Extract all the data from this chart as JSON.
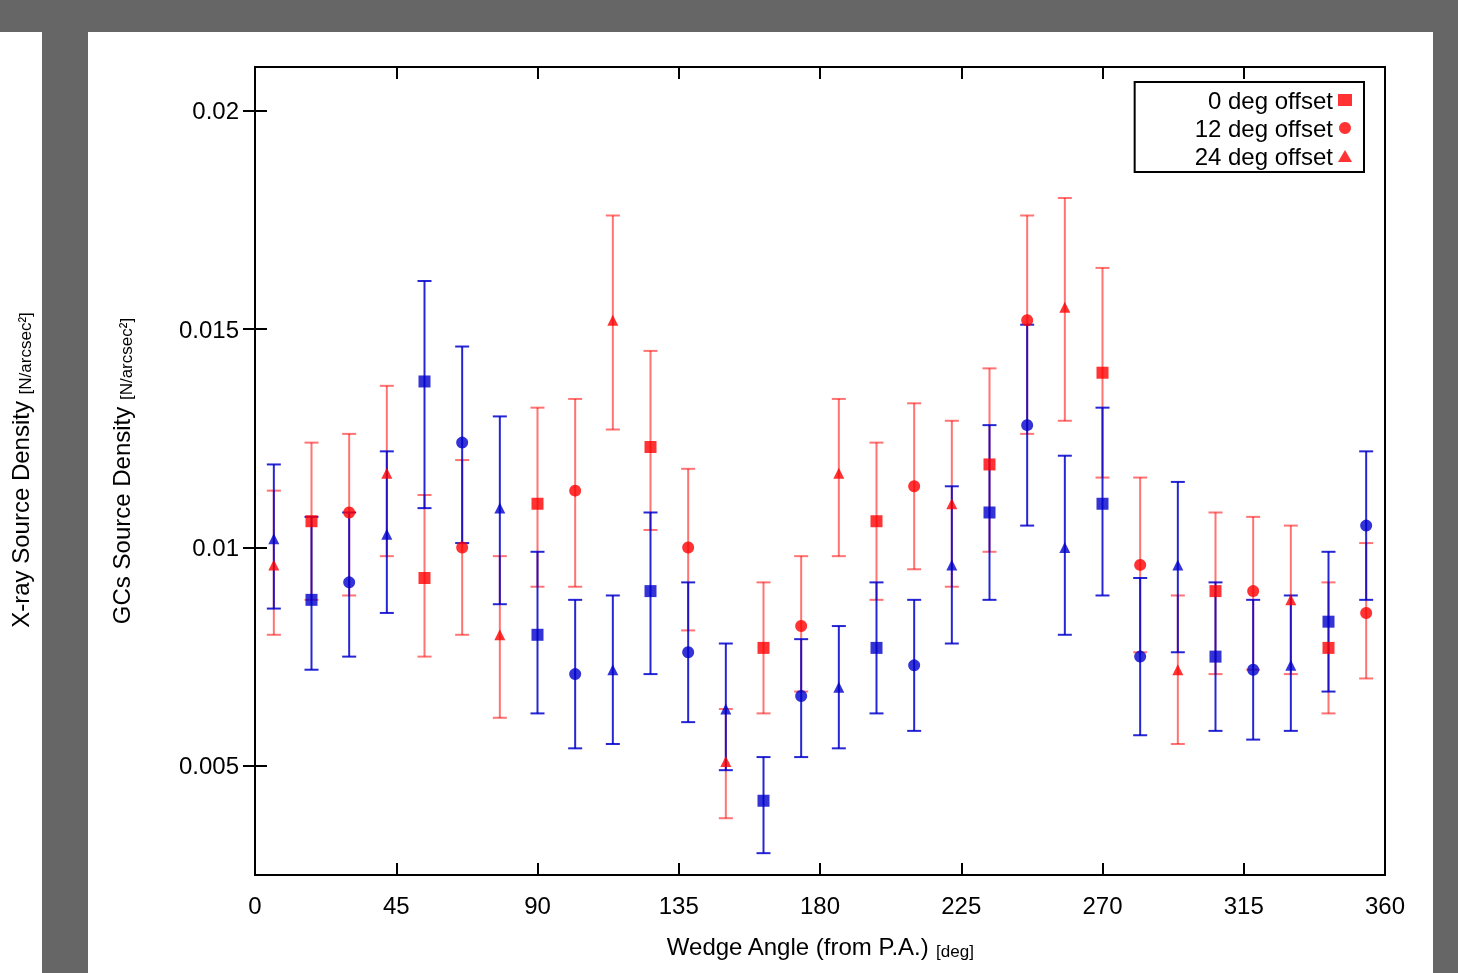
{
  "chart_data": {
    "type": "scatter",
    "ylabel": "GCs Source Density $_{[N/arcsec²]}$",
    "xlabel": "Wedge Angle (from P.A.) $_{[deg]}$",
    "annotations": [
      "X-ray Source Density $_{[N/arcsec²]}$"
    ],
    "xlim": [
      0,
      360
    ],
    "xticks": [
      0,
      45,
      90,
      135,
      180,
      225,
      270,
      315,
      360
    ],
    "ylim": [
      0.0025,
      0.021
    ],
    "yticks": [
      0.005,
      0.01,
      0.015,
      0.02
    ],
    "grid": false,
    "legend": "top right",
    "series": [
      {
        "name": "0 deg offset",
        "color": "#ff0000",
        "marker": "square",
        "x": [
          18,
          54,
          90,
          126,
          162,
          198,
          234,
          270,
          306,
          342
        ],
        "values": [
          0.0106,
          0.0093,
          0.011,
          0.0123,
          0.0077,
          0.0106,
          0.0119,
          0.014,
          0.009,
          0.0077
        ],
        "errors": [
          [
            0.0088,
            0.0124
          ],
          [
            0.0075,
            0.0112
          ],
          [
            0.0091,
            0.0132
          ],
          [
            0.0104,
            0.0145
          ],
          [
            0.0062,
            0.0092
          ],
          [
            0.0088,
            0.0124
          ],
          [
            0.0099,
            0.0141
          ],
          [
            0.0116,
            0.0164
          ],
          [
            0.0071,
            0.0108
          ],
          [
            0.0062,
            0.0092
          ]
        ]
      },
      {
        "name": "12 deg offset",
        "color": "#ff0000",
        "marker": "circle",
        "x": [
          30,
          66,
          102,
          138,
          174,
          210,
          246,
          282,
          318,
          354
        ],
        "values": [
          0.0108,
          0.01,
          0.0113,
          0.01,
          0.0082,
          0.0114,
          0.0152,
          0.0096,
          0.009,
          0.0085
        ],
        "errors": [
          [
            0.0089,
            0.0126
          ],
          [
            0.008,
            0.012
          ],
          [
            0.0091,
            0.0134
          ],
          [
            0.0081,
            0.0118
          ],
          [
            0.0067,
            0.0098
          ],
          [
            0.0095,
            0.0133
          ],
          [
            0.0126,
            0.0176
          ],
          [
            0.0076,
            0.0116
          ],
          [
            0.0072,
            0.0107
          ],
          [
            0.007,
            0.0101
          ]
        ]
      },
      {
        "name": "24 deg offset",
        "color": "#ff0000",
        "marker": "triangle",
        "x": [
          6,
          42,
          78,
          114,
          150,
          186,
          222,
          258,
          294,
          330
        ],
        "values": [
          0.0096,
          0.0117,
          0.008,
          0.0152,
          0.0051,
          0.0117,
          0.011,
          0.0155,
          0.0072,
          0.0088
        ],
        "errors": [
          [
            0.008,
            0.0113
          ],
          [
            0.0098,
            0.0137
          ],
          [
            0.0061,
            0.0098
          ],
          [
            0.0127,
            0.0176
          ],
          [
            0.0038,
            0.0063
          ],
          [
            0.0098,
            0.0134
          ],
          [
            0.0091,
            0.0129
          ],
          [
            0.0129,
            0.018
          ],
          [
            0.0055,
            0.0089
          ],
          [
            0.0071,
            0.0105
          ]
        ]
      },
      {
        "color": "#0000cc",
        "marker": "square",
        "x": [
          18,
          54,
          90,
          126,
          162,
          198,
          234,
          270,
          306,
          342
        ],
        "values": [
          0.0088,
          0.0138,
          0.008,
          0.009,
          0.0042,
          0.0077,
          0.0108,
          0.011,
          0.0075,
          0.0083
        ],
        "errors": [
          [
            0.0072,
            0.0107
          ],
          [
            0.0109,
            0.0161
          ],
          [
            0.0062,
            0.0099
          ],
          [
            0.0071,
            0.0108
          ],
          [
            0.003,
            0.0052
          ],
          [
            0.0062,
            0.0092
          ],
          [
            0.0088,
            0.0128
          ],
          [
            0.0089,
            0.0132
          ],
          [
            0.0058,
            0.0092
          ],
          [
            0.0067,
            0.0099
          ]
        ]
      },
      {
        "color": "#0000cc",
        "marker": "circle",
        "x": [
          30,
          66,
          102,
          138,
          174,
          210,
          246,
          282,
          318,
          354
        ],
        "values": [
          0.0092,
          0.0124,
          0.0071,
          0.0076,
          0.0066,
          0.0073,
          0.0128,
          0.0075,
          0.0072,
          0.0105
        ],
        "errors": [
          [
            0.0075,
            0.0108
          ],
          [
            0.0101,
            0.0146
          ],
          [
            0.0054,
            0.0088
          ],
          [
            0.006,
            0.0092
          ],
          [
            0.0052,
            0.0079
          ],
          [
            0.0058,
            0.0088
          ],
          [
            0.0105,
            0.0151
          ],
          [
            0.0057,
            0.0093
          ],
          [
            0.0056,
            0.0088
          ],
          [
            0.0088,
            0.0122
          ]
        ]
      },
      {
        "color": "#0000cc",
        "marker": "triangle",
        "x": [
          6,
          42,
          78,
          114,
          150,
          186,
          222,
          258,
          294,
          330
        ],
        "values": [
          0.0102,
          0.0103,
          0.0109,
          0.0072,
          0.0063,
          0.0068,
          0.0096,
          0.01,
          0.0096,
          0.0073
        ],
        "errors": [
          [
            0.0086,
            0.0119
          ],
          [
            0.0085,
            0.0122
          ],
          [
            0.0087,
            0.013
          ],
          [
            0.0055,
            0.0089
          ],
          [
            0.0049,
            0.0078
          ],
          [
            0.0054,
            0.0082
          ],
          [
            0.0078,
            0.0114
          ],
          [
            0.008,
            0.0121
          ],
          [
            0.0076,
            0.0115
          ],
          [
            0.0058,
            0.0089
          ]
        ]
      }
    ]
  }
}
